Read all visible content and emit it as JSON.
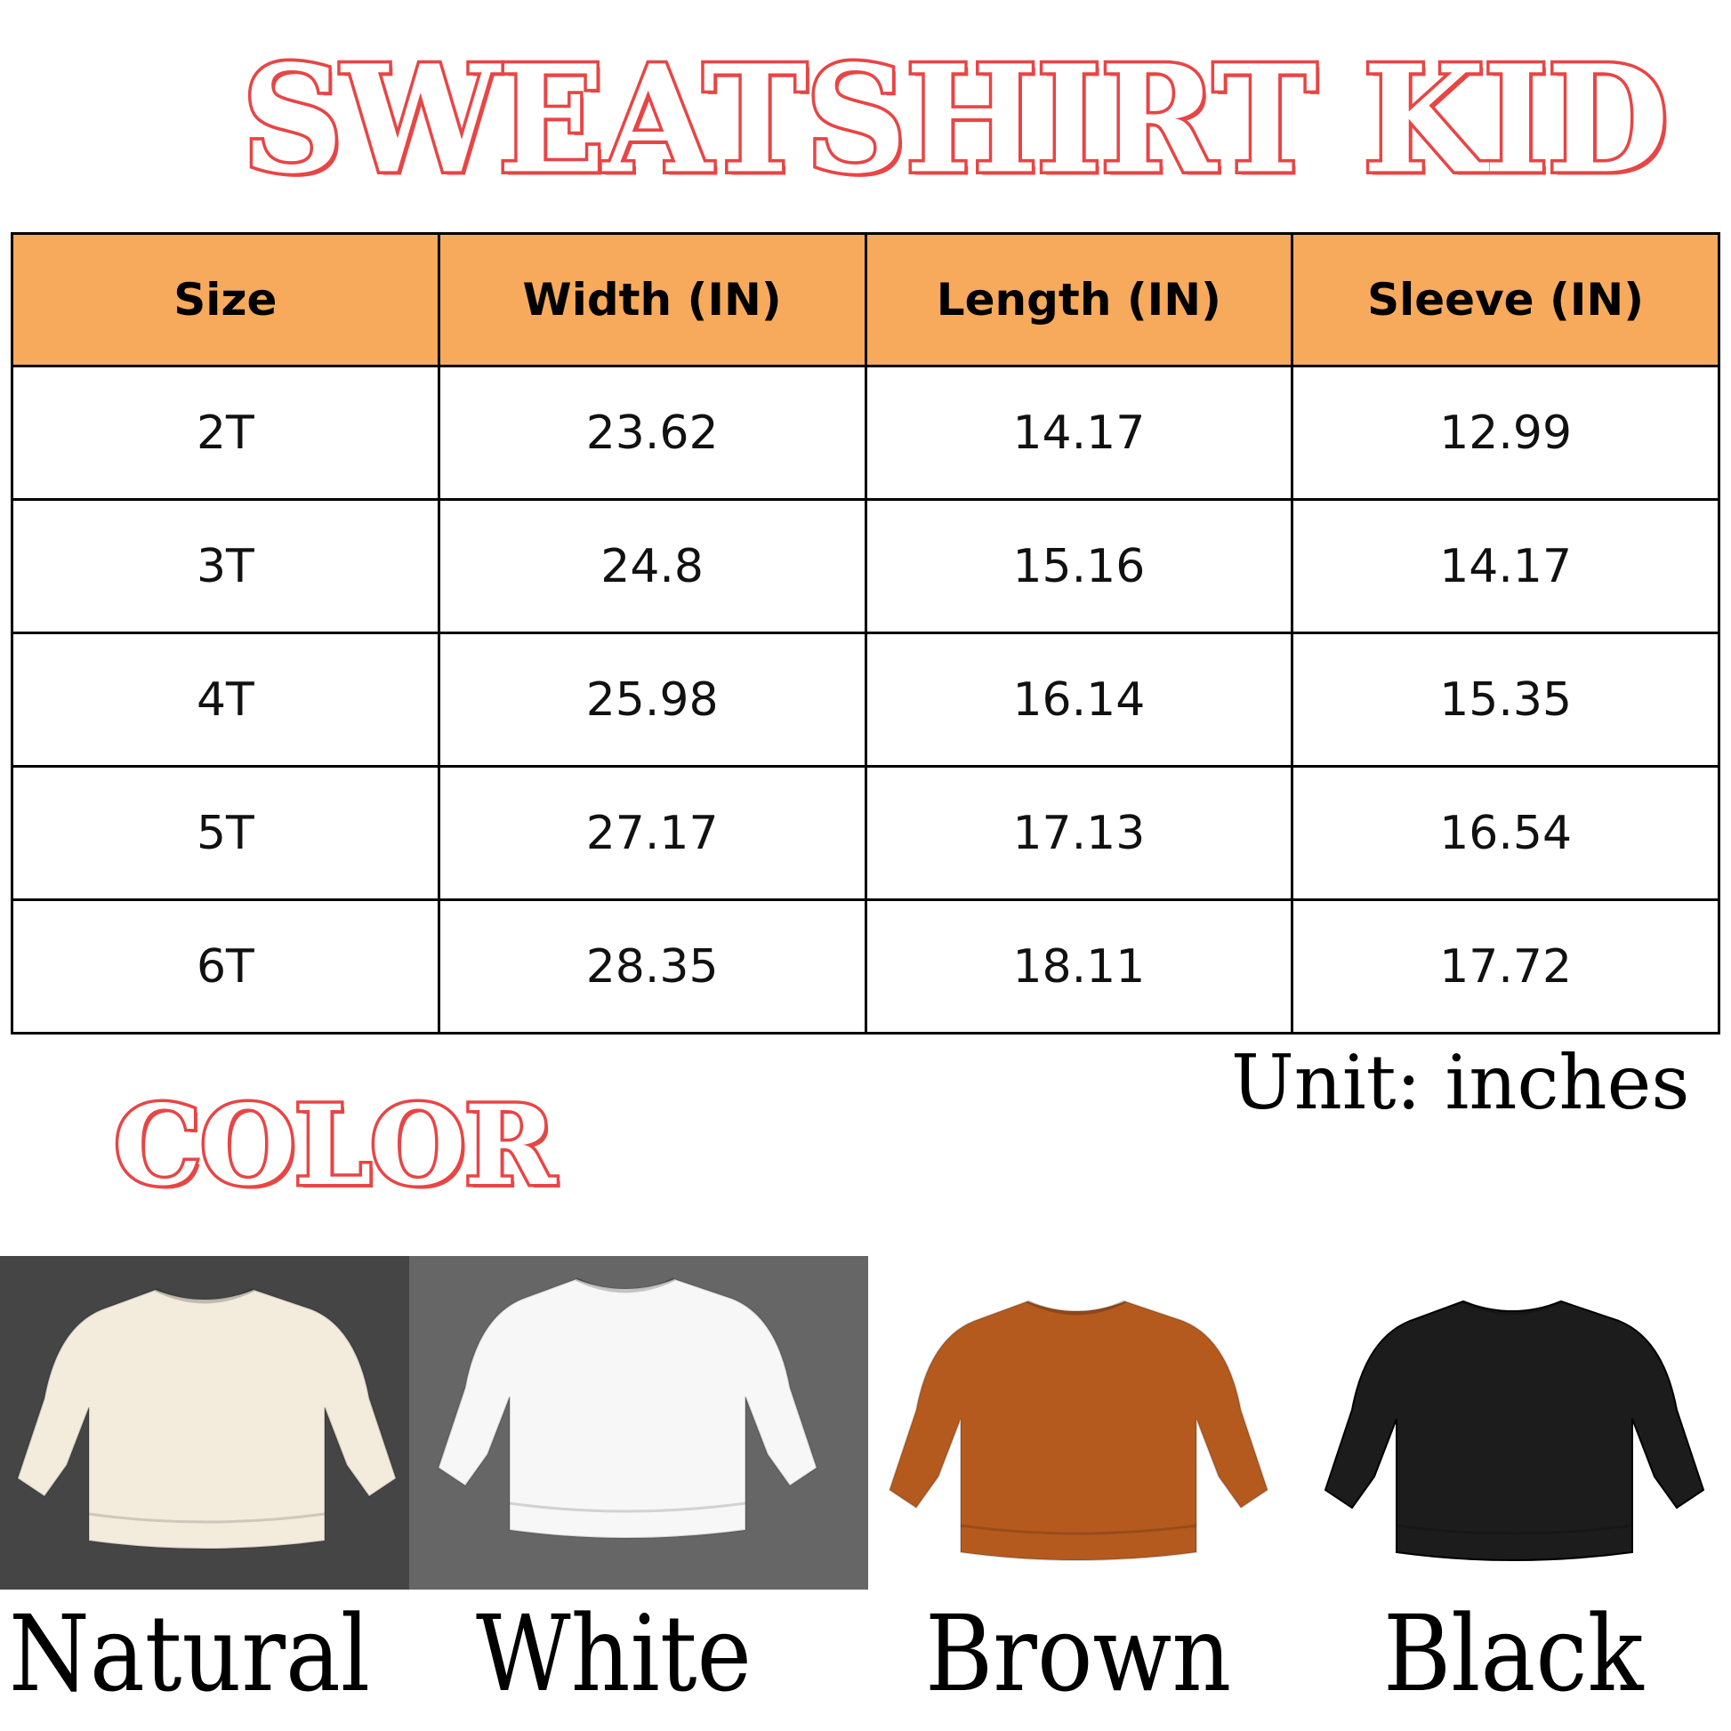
{
  "title": "SWEATSHIRT KID",
  "table": {
    "headers": [
      "Size",
      "Width (IN)",
      "Length (IN)",
      "Sleeve (IN)"
    ],
    "rows": [
      [
        "2T",
        "23.62",
        "14.17",
        "12.99"
      ],
      [
        "3T",
        "24.8",
        "15.16",
        "14.17"
      ],
      [
        "4T",
        "25.98",
        "16.14",
        "15.35"
      ],
      [
        "5T",
        "27.17",
        "17.13",
        "16.54"
      ],
      [
        "6T",
        "28.35",
        "18.11",
        "17.72"
      ]
    ]
  },
  "unit": "Unit: inches",
  "color_title": "COLOR",
  "colors": [
    {
      "name": "Natural",
      "hex": "#f3ebdc",
      "bg": "#454545"
    },
    {
      "name": "White",
      "hex": "#f7f7f7",
      "bg": "#666666"
    },
    {
      "name": "Brown",
      "hex": "#b45a1f",
      "bg": "#ffffff"
    },
    {
      "name": "Black",
      "hex": "#1c1c1c",
      "bg": "#ffffff"
    }
  ],
  "accent": "#e84545",
  "header_bg": "#f7aa5c"
}
